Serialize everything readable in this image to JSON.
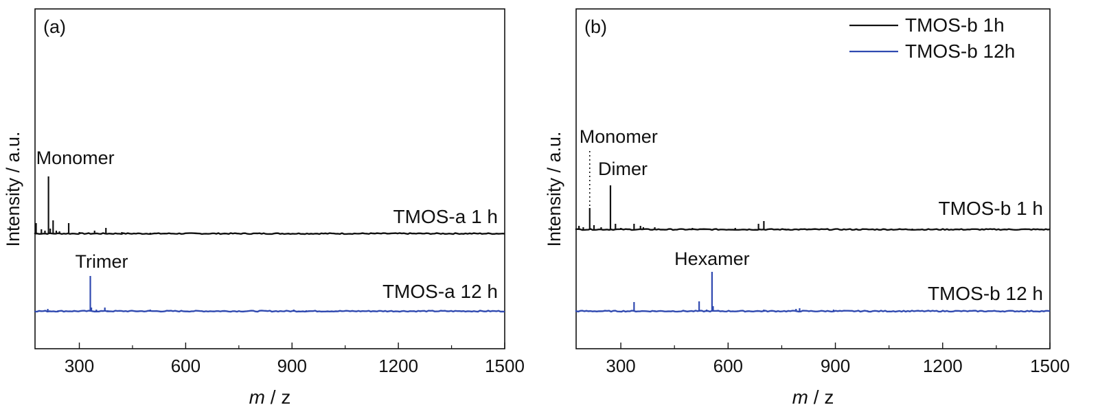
{
  "chart_data": [
    {
      "type": "line",
      "panel_label": "(a)",
      "xlabel_italic": "m",
      "xlabel_rest": " / z",
      "ylabel": "Intensity / a.u.",
      "xlim": [
        175,
        1500
      ],
      "xticks": [
        300,
        600,
        900,
        1200,
        1500
      ],
      "yaxis_ticks": "none",
      "series": [
        {
          "trace_label": "TMOS-a 1 h",
          "color": "#111111",
          "peaks": [
            {
              "x": 178,
              "y": 16
            },
            {
              "x": 193,
              "y": 7
            },
            {
              "x": 203,
              "y": 5
            },
            {
              "x": 213,
              "y": 84
            },
            {
              "x": 218,
              "y": 8
            },
            {
              "x": 226,
              "y": 20
            },
            {
              "x": 235,
              "y": 5
            },
            {
              "x": 244,
              "y": 4
            },
            {
              "x": 270,
              "y": 16
            },
            {
              "x": 300,
              "y": 3
            },
            {
              "x": 343,
              "y": 5
            },
            {
              "x": 375,
              "y": 9
            },
            {
              "x": 420,
              "y": 3
            },
            {
              "x": 500,
              "y": 2
            }
          ],
          "annotations": [
            {
              "text": "Monomer",
              "x": 213
            }
          ]
        },
        {
          "trace_label": "TMOS-a 12 h",
          "color": "#2f49b0",
          "peaks": [
            {
              "x": 211,
              "y": 4
            },
            {
              "x": 240,
              "y": 2
            },
            {
              "x": 285,
              "y": 2
            },
            {
              "x": 331,
              "y": 52
            },
            {
              "x": 334,
              "y": 6
            },
            {
              "x": 348,
              "y": 3
            },
            {
              "x": 372,
              "y": 6
            },
            {
              "x": 380,
              "y": 2
            },
            {
              "x": 500,
              "y": 3
            },
            {
              "x": 690,
              "y": 2
            },
            {
              "x": 905,
              "y": 3
            },
            {
              "x": 940,
              "y": 2
            },
            {
              "x": 1190,
              "y": 1
            }
          ],
          "annotations": [
            {
              "text": "Trimer",
              "x": 331
            }
          ]
        }
      ]
    },
    {
      "type": "line",
      "panel_label": "(b)",
      "xlabel_italic": "m",
      "xlabel_rest": " / z",
      "ylabel": "Intensity / a.u.",
      "xlim": [
        175,
        1500
      ],
      "xticks": [
        300,
        600,
        900,
        1200,
        1500
      ],
      "yaxis_ticks": "none",
      "legend": {
        "placement": "top-right",
        "entries": [
          {
            "label": "TMOS-b 1h",
            "color": "#111111"
          },
          {
            "label": "TMOS-b 12h",
            "color": "#2f49b0"
          }
        ]
      },
      "series": [
        {
          "trace_label": "TMOS-b 1 h",
          "color": "#111111",
          "peaks": [
            {
              "x": 183,
              "y": 6
            },
            {
              "x": 195,
              "y": 4
            },
            {
              "x": 213,
              "y": 32
            },
            {
              "x": 225,
              "y": 7
            },
            {
              "x": 245,
              "y": 4
            },
            {
              "x": 271,
              "y": 65
            },
            {
              "x": 285,
              "y": 9
            },
            {
              "x": 300,
              "y": 3
            },
            {
              "x": 337,
              "y": 9
            },
            {
              "x": 355,
              "y": 6
            },
            {
              "x": 363,
              "y": 4
            },
            {
              "x": 395,
              "y": 4
            },
            {
              "x": 500,
              "y": 3
            },
            {
              "x": 620,
              "y": 3
            },
            {
              "x": 685,
              "y": 9
            },
            {
              "x": 700,
              "y": 13
            },
            {
              "x": 760,
              "y": 2
            },
            {
              "x": 1115,
              "y": 2
            }
          ],
          "annotations": [
            {
              "text": "Monomer",
              "x": 213,
              "dotted_leader": true
            },
            {
              "text": "Dimer",
              "x": 271
            }
          ]
        },
        {
          "trace_label": "TMOS-b 12 h",
          "color": "#2f49b0",
          "peaks": [
            {
              "x": 195,
              "y": 2
            },
            {
              "x": 255,
              "y": 2
            },
            {
              "x": 337,
              "y": 14
            },
            {
              "x": 395,
              "y": 2
            },
            {
              "x": 480,
              "y": 2
            },
            {
              "x": 519,
              "y": 15
            },
            {
              "x": 540,
              "y": 3
            },
            {
              "x": 555,
              "y": 58
            },
            {
              "x": 558,
              "y": 8
            },
            {
              "x": 680,
              "y": 2
            },
            {
              "x": 700,
              "y": 3
            },
            {
              "x": 790,
              "y": 4
            },
            {
              "x": 800,
              "y": 5
            },
            {
              "x": 895,
              "y": 3
            },
            {
              "x": 990,
              "y": 2
            },
            {
              "x": 1180,
              "y": 1
            }
          ],
          "annotations": [
            {
              "text": "Hexamer",
              "x": 555
            }
          ]
        }
      ]
    }
  ]
}
